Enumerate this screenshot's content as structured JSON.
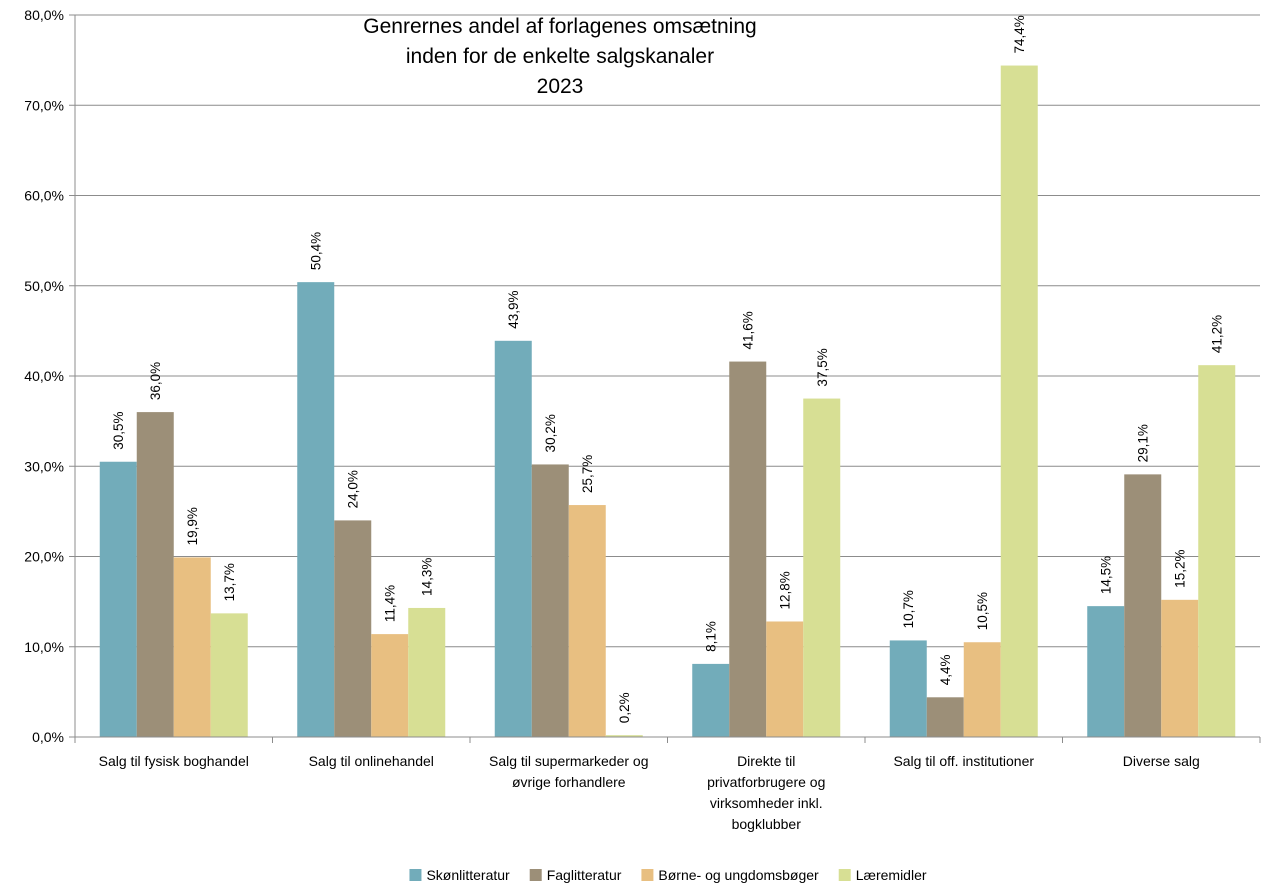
{
  "chart_data": {
    "type": "bar",
    "title_lines": [
      "Genrernes andel af forlagenes omsætning",
      "inden for de enkelte salgskanaler",
      "2023"
    ],
    "categories": [
      [
        "Salg til fysisk boghandel"
      ],
      [
        "Salg til onlinehandel"
      ],
      [
        "Salg til supermarkeder og",
        "øvrige forhandlere"
      ],
      [
        "Direkte til",
        "privatforbrugere og",
        "virksomheder inkl.",
        "bogklubber"
      ],
      [
        "Salg til off. institutioner"
      ],
      [
        "Diverse salg"
      ]
    ],
    "series": [
      {
        "name": "Skønlitteratur",
        "color": "#72acba",
        "values": [
          30.5,
          50.4,
          43.9,
          8.1,
          10.7,
          14.5
        ],
        "labels": [
          "30,5%",
          "50,4%",
          "43,9%",
          "8,1%",
          "10,7%",
          "14,5%"
        ]
      },
      {
        "name": "Faglitteratur",
        "color": "#9c8f78",
        "values": [
          36.0,
          24.0,
          30.2,
          41.6,
          4.4,
          29.1
        ],
        "labels": [
          "36,0%",
          "24,0%",
          "30,2%",
          "41,6%",
          "4,4%",
          "29,1%"
        ]
      },
      {
        "name": "Børne- og ungdomsbøger",
        "color": "#e8bf81",
        "values": [
          19.9,
          11.4,
          25.7,
          12.8,
          10.5,
          15.2
        ],
        "labels": [
          "19,9%",
          "11,4%",
          "25,7%",
          "12,8%",
          "10,5%",
          "15,2%"
        ]
      },
      {
        "name": "Læremidler",
        "color": "#d7df94",
        "values": [
          13.7,
          14.3,
          0.2,
          37.5,
          74.4,
          41.2
        ],
        "labels": [
          "13,7%",
          "14,3%",
          "0,2%",
          "37,5%",
          "74,4%",
          "41,2%"
        ]
      }
    ],
    "y_ticks": [
      0,
      10,
      20,
      30,
      40,
      50,
      60,
      70,
      80
    ],
    "y_tick_labels": [
      "0,0%",
      "10,0%",
      "20,0%",
      "30,0%",
      "40,0%",
      "50,0%",
      "60,0%",
      "70,0%",
      "80,0%"
    ],
    "ylim": [
      0,
      80
    ],
    "xlabel": "",
    "ylabel": "",
    "grid": true,
    "legend_position": "bottom"
  }
}
